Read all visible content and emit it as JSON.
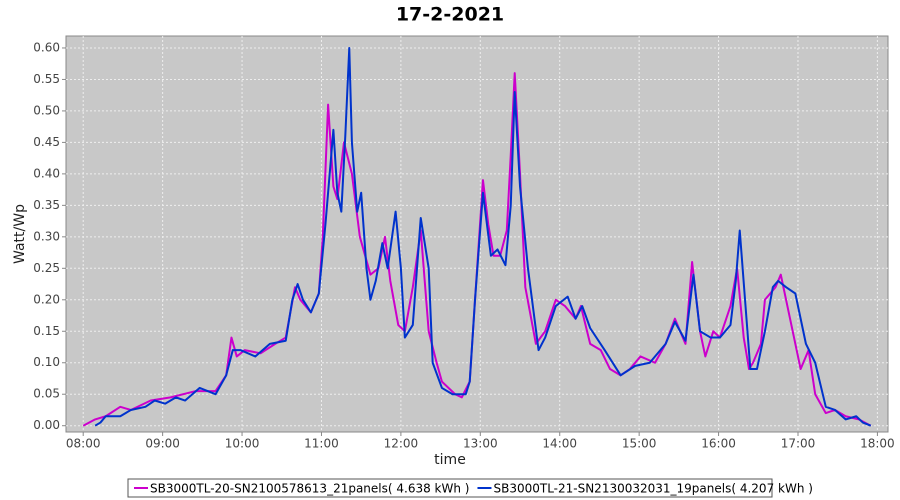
{
  "chart_data": {
    "type": "line",
    "title": "17-2-2021",
    "x_label": "time",
    "y_label": "Watt/Wp",
    "xlim": [
      467,
      1088
    ],
    "ylim": [
      -0.01,
      0.619
    ],
    "xticks": [
      {
        "value": 480,
        "label": "08:00"
      },
      {
        "value": 540,
        "label": "09:00"
      },
      {
        "value": 600,
        "label": "10:00"
      },
      {
        "value": 660,
        "label": "11:00"
      },
      {
        "value": 720,
        "label": "12:00"
      },
      {
        "value": 780,
        "label": "13:00"
      },
      {
        "value": 840,
        "label": "14:00"
      },
      {
        "value": 900,
        "label": "15:00"
      },
      {
        "value": 960,
        "label": "16:00"
      },
      {
        "value": 1020,
        "label": "17:00"
      },
      {
        "value": 1080,
        "label": "18:00"
      }
    ],
    "yticks": [
      {
        "value": 0,
        "label": "0.00"
      },
      {
        "value": 0.05,
        "label": "0.05"
      },
      {
        "value": 0.1,
        "label": "0.10"
      },
      {
        "value": 0.15,
        "label": "0.15"
      },
      {
        "value": 0.2,
        "label": "0.20"
      },
      {
        "value": 0.25,
        "label": "0.25"
      },
      {
        "value": 0.3,
        "label": "0.30"
      },
      {
        "value": 0.35,
        "label": "0.35"
      },
      {
        "value": 0.4,
        "label": "0.40"
      },
      {
        "value": 0.45,
        "label": "0.45"
      },
      {
        "value": 0.5,
        "label": "0.50"
      },
      {
        "value": 0.55,
        "label": "0.55"
      },
      {
        "value": 0.6,
        "label": "0.60"
      }
    ],
    "grid": true,
    "legend": "bottom",
    "series": [
      {
        "name": "SB3000TL-20-SN2100578613_21panels( 4.638 kWh )",
        "color": "#cc00cc",
        "x": [
          480,
          489,
          497,
          508,
          516,
          531,
          546,
          565,
          580,
          588,
          592,
          596,
          602,
          614,
          625,
          633,
          640,
          644,
          652,
          658,
          661,
          665,
          669,
          672,
          677,
          683,
          689,
          697,
          703,
          708,
          712,
          718,
          723,
          729,
          735,
          741,
          747,
          751,
          761,
          766,
          772,
          776,
          782,
          786,
          790,
          795,
          800,
          803,
          806,
          810,
          814,
          822,
          829,
          837,
          844,
          852,
          856,
          863,
          871,
          878,
          886,
          893,
          901,
          912,
          920,
          927,
          935,
          940,
          946,
          950,
          956,
          961,
          969,
          974,
          979,
          983,
          986,
          992,
          995,
          999,
          1003,
          1007,
          1014,
          1022,
          1028,
          1033,
          1041,
          1048,
          1056,
          1066,
          1075
        ],
        "values": [
          0,
          0.01,
          0.015,
          0.03,
          0.025,
          0.04,
          0.045,
          0.055,
          0.055,
          0.08,
          0.14,
          0.11,
          0.12,
          0.115,
          0.13,
          0.14,
          0.22,
          0.2,
          0.18,
          0.21,
          0.3,
          0.51,
          0.38,
          0.36,
          0.45,
          0.4,
          0.3,
          0.24,
          0.25,
          0.3,
          0.23,
          0.16,
          0.15,
          0.22,
          0.31,
          0.15,
          0.1,
          0.07,
          0.05,
          0.045,
          0.07,
          0.2,
          0.39,
          0.32,
          0.27,
          0.27,
          0.31,
          0.43,
          0.56,
          0.4,
          0.22,
          0.13,
          0.15,
          0.2,
          0.19,
          0.17,
          0.19,
          0.13,
          0.12,
          0.09,
          0.08,
          0.09,
          0.11,
          0.1,
          0.13,
          0.17,
          0.13,
          0.26,
          0.15,
          0.11,
          0.15,
          0.14,
          0.19,
          0.25,
          0.14,
          0.09,
          0.1,
          0.13,
          0.2,
          0.21,
          0.22,
          0.24,
          0.17,
          0.09,
          0.12,
          0.05,
          0.02,
          0.025,
          0.015,
          0.01,
          0
        ]
      },
      {
        "name": "SB3000TL-21-SN2130032031_19panels( 4.207 kWh )",
        "color": "#0033cc",
        "x": [
          489,
          493,
          497,
          508,
          516,
          527,
          534,
          542,
          550,
          557,
          568,
          580,
          588,
          593,
          599,
          610,
          621,
          633,
          638,
          642,
          646,
          652,
          658,
          663,
          669,
          672,
          675,
          678,
          681,
          683,
          687,
          690,
          694,
          697,
          701,
          706,
          710,
          716,
          720,
          723,
          729,
          735,
          741,
          744,
          751,
          759,
          769,
          772,
          776,
          782,
          788,
          793,
          799,
          803,
          806,
          810,
          816,
          824,
          829,
          837,
          846,
          852,
          857,
          863,
          874,
          886,
          897,
          908,
          920,
          927,
          935,
          941,
          946,
          954,
          961,
          969,
          973,
          976,
          980,
          984,
          989,
          995,
          1001,
          1005,
          1011,
          1018,
          1026,
          1033,
          1041,
          1048,
          1056,
          1064,
          1069,
          1075
        ],
        "values": [
          0,
          0.005,
          0.015,
          0.015,
          0.025,
          0.03,
          0.04,
          0.035,
          0.045,
          0.04,
          0.06,
          0.05,
          0.08,
          0.12,
          0.12,
          0.11,
          0.13,
          0.135,
          0.2,
          0.225,
          0.2,
          0.18,
          0.21,
          0.32,
          0.47,
          0.37,
          0.34,
          0.46,
          0.6,
          0.45,
          0.34,
          0.37,
          0.25,
          0.2,
          0.23,
          0.29,
          0.25,
          0.34,
          0.25,
          0.14,
          0.16,
          0.33,
          0.25,
          0.1,
          0.06,
          0.05,
          0.05,
          0.07,
          0.2,
          0.37,
          0.27,
          0.28,
          0.255,
          0.35,
          0.53,
          0.38,
          0.25,
          0.12,
          0.14,
          0.19,
          0.205,
          0.17,
          0.19,
          0.155,
          0.12,
          0.08,
          0.095,
          0.1,
          0.13,
          0.165,
          0.135,
          0.24,
          0.15,
          0.14,
          0.14,
          0.16,
          0.23,
          0.31,
          0.2,
          0.09,
          0.09,
          0.15,
          0.22,
          0.23,
          0.22,
          0.21,
          0.13,
          0.1,
          0.03,
          0.025,
          0.01,
          0.015,
          0.005,
          0
        ]
      }
    ]
  }
}
